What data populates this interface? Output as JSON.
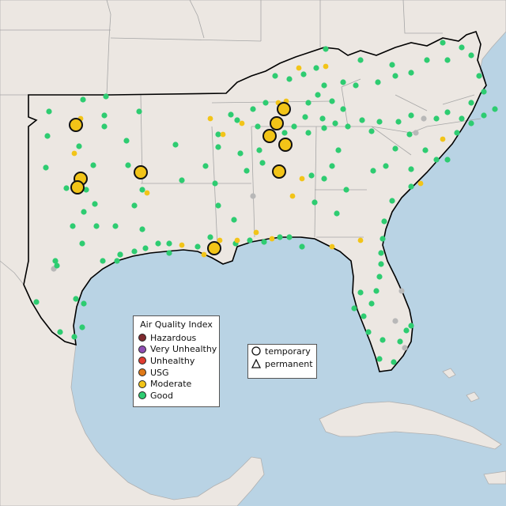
{
  "legend": {
    "title": "Air Quality Index",
    "categories": [
      {
        "label": "Hazardous",
        "color": "#7e2a2f"
      },
      {
        "label": "Very Unhealthy",
        "color": "#8f4fb4"
      },
      {
        "label": "Unhealthy",
        "color": "#e03c31"
      },
      {
        "label": "USG",
        "color": "#e07a18"
      },
      {
        "label": "Moderate",
        "color": "#f2c418"
      },
      {
        "label": "Good",
        "color": "#2ecc71"
      }
    ]
  },
  "monitor_legend": {
    "temporary": "temporary",
    "permanent": "permanent"
  },
  "colors": {
    "water": "#b9d3e4",
    "land": "#ece7e2",
    "border": "#a9a9a9",
    "region_outline": "#000000",
    "no_data": "#b8b8b8"
  }
}
